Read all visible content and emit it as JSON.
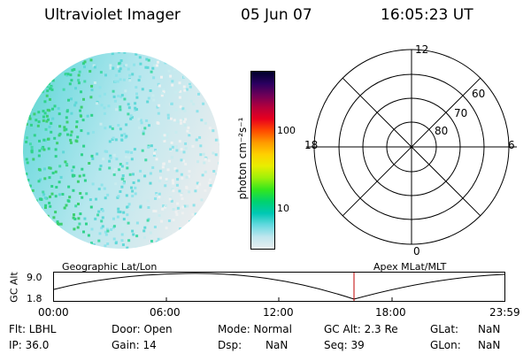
{
  "header": {
    "instrument": "Ultraviolet Imager",
    "date": "05 Jun 07",
    "time": "16:05:23 UT"
  },
  "colorbar": {
    "unit_label": "photon cm⁻²s⁻¹",
    "ticks": [
      "100",
      "10"
    ],
    "colors": [
      "#e8eef0",
      "#bfe6ee",
      "#66d9e0",
      "#00c8b4",
      "#00d26e",
      "#33e61e",
      "#9ef00a",
      "#e8ee00",
      "#ffd000",
      "#ff9a00",
      "#ff4a00",
      "#e8001e",
      "#b4003c",
      "#6e0058",
      "#2a0060",
      "#00002a"
    ]
  },
  "polar_plot": {
    "hour_labels": {
      "top": "12",
      "left": "18",
      "right": "6",
      "bottom": "0"
    },
    "lat_labels": [
      "60",
      "70",
      "80"
    ]
  },
  "orbit_plot": {
    "left_title": "Geographic Lat/Lon",
    "right_title": "Apex MLat/MLT",
    "ylabel": "GC Alt",
    "y_ticks": [
      "9.0",
      "1.8"
    ],
    "x_ticks": [
      "00:00",
      "06:00",
      "12:00",
      "18:00",
      "23:59"
    ],
    "marker_color": "#c00000"
  },
  "status": {
    "row1": {
      "flt": "Flt: LBHL",
      "door": "Door: Open",
      "mode": "Mode: Normal",
      "gcalt": "GC Alt: 2.3 Re",
      "glat_label": "GLat:",
      "glat_value": "NaN"
    },
    "row2": {
      "ip": "IP: 36.0",
      "gain": "Gain: 14",
      "dsp_label": "Dsp:",
      "dsp_value": "NaN",
      "seq": "Seq: 39",
      "glon_label": "GLon:",
      "glon_value": "NaN"
    }
  }
}
